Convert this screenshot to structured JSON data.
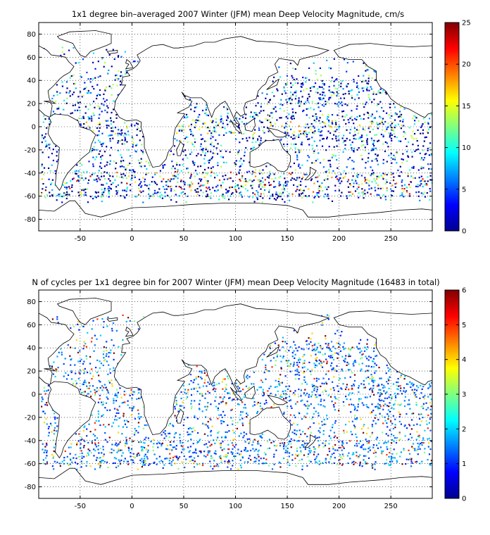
{
  "chart_data": [
    {
      "type": "heatmap",
      "title": "1x1 degree bin–averaged 2007 Winter (JFM) mean Deep Velocity Magnitude, cm/s",
      "xlabel": "",
      "ylabel": "",
      "xlim": [
        -90,
        290
      ],
      "ylim": [
        -90,
        90
      ],
      "x_ticks": [
        "-50",
        "0",
        "50",
        "100",
        "150",
        "200",
        "250"
      ],
      "y_ticks": [
        "80",
        "60",
        "40",
        "20",
        "0",
        "-20",
        "-40",
        "-60",
        "-80"
      ],
      "grid": true,
      "colorbar": {
        "min": 0,
        "max": 25,
        "ticks": [
          "25",
          "20",
          "15",
          "10",
          "5",
          "0"
        ],
        "colormap": "jet"
      }
    },
    {
      "type": "heatmap",
      "title": "N of cycles per 1x1 degree bin for 2007 Winter (JFM) mean Deep Velocity Magnitude (16483 in total)",
      "xlabel": "",
      "ylabel": "",
      "xlim": [
        -90,
        290
      ],
      "ylim": [
        -90,
        90
      ],
      "x_ticks": [
        "-50",
        "0",
        "50",
        "100",
        "150",
        "200",
        "250"
      ],
      "y_ticks": [
        "80",
        "60",
        "40",
        "20",
        "0",
        "-20",
        "-40",
        "-60",
        "-80"
      ],
      "grid": true,
      "colorbar": {
        "min": 0,
        "max": 6,
        "ticks": [
          "6",
          "5",
          "4",
          "3",
          "2",
          "1",
          "0"
        ],
        "colormap": "jet"
      }
    }
  ],
  "colors": {
    "frame": "#000000",
    "grid": "#000000",
    "background": "#ffffff"
  }
}
